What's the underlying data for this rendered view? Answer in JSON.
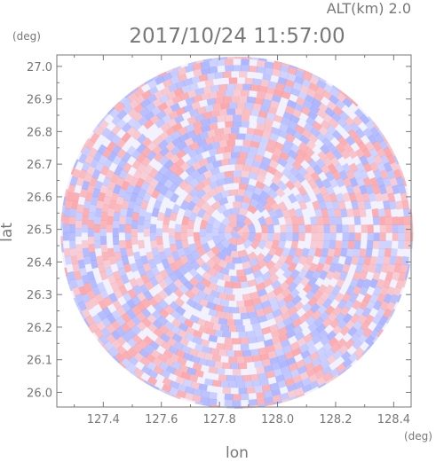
{
  "header": {
    "altitude_label": "ALT(km)  2.0",
    "timestamp": "2017/10/24 11:57:00"
  },
  "chart_data": {
    "type": "heatmap",
    "title": "2017/10/24 11:57:00",
    "subtitle": "ALT(km)  2.0",
    "xlabel": "lon",
    "ylabel": "lat",
    "x_unit": "(deg)",
    "y_unit": "(deg)",
    "xlim": [
      127.24,
      128.46
    ],
    "ylim": [
      25.955,
      27.035
    ],
    "x_ticks": [
      "127.4",
      "127.6",
      "127.8",
      "128.0",
      "128.2",
      "128.4"
    ],
    "y_ticks": [
      "26.0",
      "26.1",
      "26.2",
      "26.3",
      "26.4",
      "26.5",
      "26.6",
      "26.7",
      "26.8",
      "26.9",
      "27.0"
    ],
    "center": {
      "lon": 127.86,
      "lat": 26.49
    },
    "radius_lat_deg": 0.54,
    "colors": {
      "positive": "#ff8a8a",
      "negative": "#8f9bff",
      "neutral": "#ffffff",
      "axis": "#777777"
    },
    "grid": false,
    "legend": "none"
  }
}
